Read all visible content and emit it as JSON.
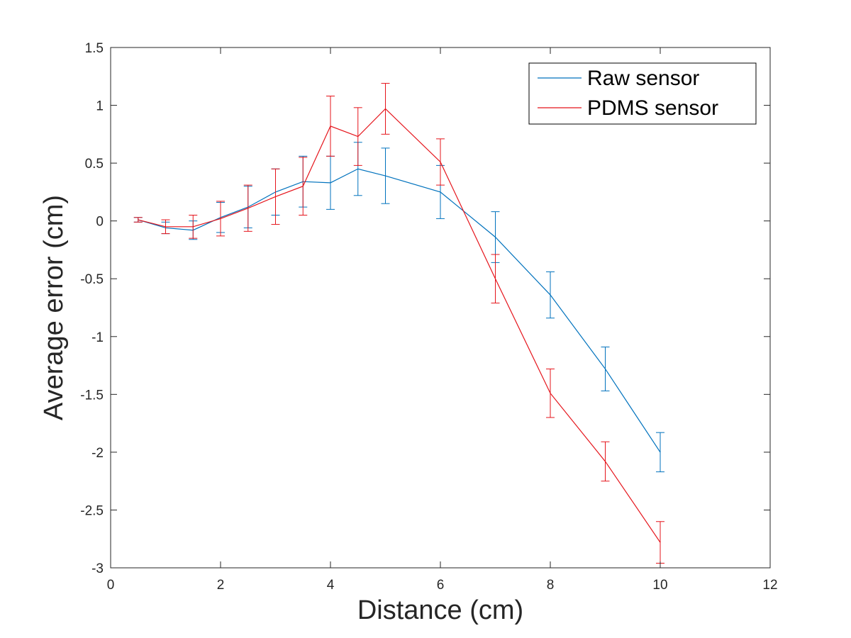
{
  "chart_data": {
    "type": "line",
    "xlabel": "Distance (cm)",
    "ylabel": "Average error (cm)",
    "xlim": [
      0,
      12
    ],
    "ylim": [
      -3,
      1.5
    ],
    "xticks": [
      0,
      2,
      4,
      6,
      8,
      10,
      12
    ],
    "yticks": [
      -3,
      -2.5,
      -2,
      -1.5,
      -1,
      -0.5,
      0,
      0.5,
      1,
      1.5
    ],
    "xtick_labels": [
      "0",
      "2",
      "4",
      "6",
      "8",
      "10",
      "12"
    ],
    "ytick_labels": [
      "-3",
      "-2.5",
      "-2",
      "-1.5",
      "-1",
      "-0.5",
      "0",
      "0.5",
      "1",
      "1.5"
    ],
    "grid": false,
    "legend_position": "top-right",
    "x": [
      0.5,
      1,
      1.5,
      2,
      2.5,
      3,
      3.5,
      4,
      4.5,
      5,
      6,
      7,
      8,
      9,
      10
    ],
    "series": [
      {
        "name": "Raw sensor",
        "color": "#0072BD",
        "values": [
          0.01,
          -0.06,
          -0.08,
          0.03,
          0.12,
          0.25,
          0.34,
          0.33,
          0.45,
          0.39,
          0.25,
          -0.14,
          -0.64,
          -1.28,
          -2.0
        ],
        "errors": [
          0.02,
          0.05,
          0.08,
          0.13,
          0.18,
          0.2,
          0.22,
          0.23,
          0.23,
          0.24,
          0.23,
          0.22,
          0.2,
          0.19,
          0.17
        ]
      },
      {
        "name": "PDMS sensor",
        "color": "#E5141B",
        "values": [
          0.01,
          -0.05,
          -0.05,
          0.02,
          0.11,
          0.21,
          0.3,
          0.82,
          0.73,
          0.97,
          0.51,
          -0.5,
          -1.49,
          -2.08,
          -2.78
        ],
        "errors": [
          0.02,
          0.06,
          0.1,
          0.15,
          0.2,
          0.24,
          0.25,
          0.26,
          0.25,
          0.22,
          0.2,
          0.21,
          0.21,
          0.17,
          0.18
        ]
      }
    ]
  }
}
